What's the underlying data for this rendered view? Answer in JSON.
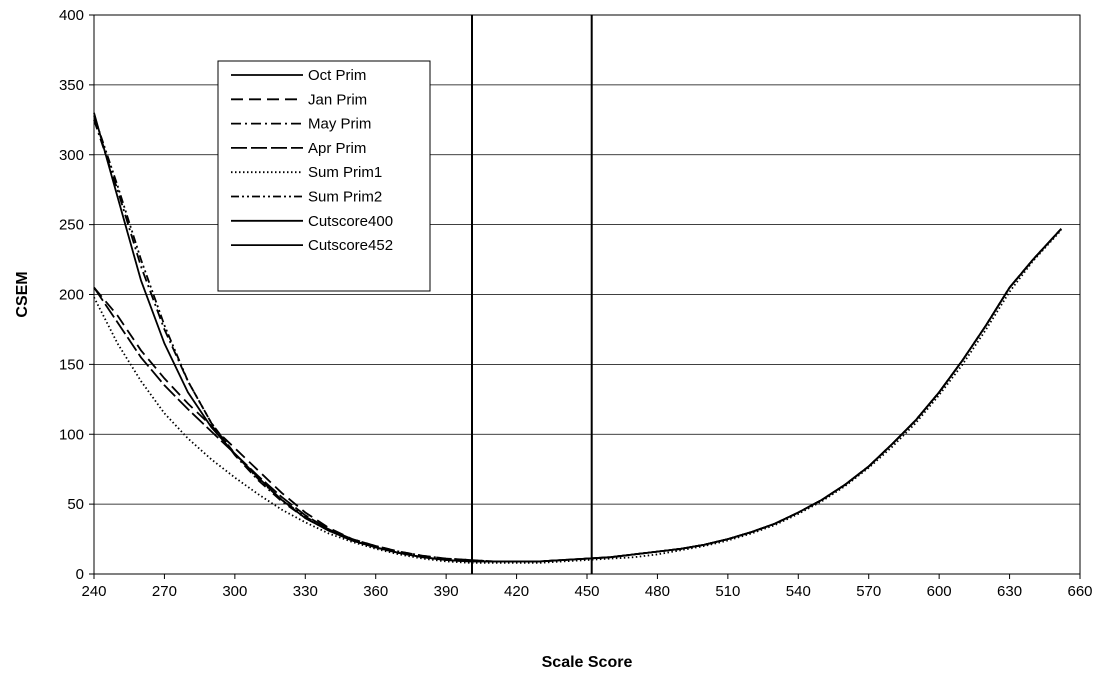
{
  "chart_data": {
    "type": "line",
    "title": "",
    "xlabel": "Scale Score",
    "ylabel": "CSEM",
    "xlim": [
      240,
      660
    ],
    "ylim": [
      0,
      400
    ],
    "xticks": [
      240,
      270,
      300,
      330,
      360,
      390,
      420,
      450,
      480,
      510,
      540,
      570,
      600,
      630,
      660
    ],
    "yticks": [
      0,
      50,
      100,
      150,
      200,
      250,
      300,
      350,
      400
    ],
    "grid": "horizontal",
    "legend_position": "top-left inside plot",
    "series": [
      {
        "name": "Oct Prim",
        "dash": "solid",
        "points": [
          [
            240,
            330
          ],
          [
            250,
            270
          ],
          [
            260,
            210
          ],
          [
            270,
            165
          ],
          [
            280,
            130
          ],
          [
            290,
            105
          ],
          [
            300,
            86
          ],
          [
            310,
            69
          ],
          [
            320,
            53
          ],
          [
            330,
            40
          ],
          [
            340,
            31
          ],
          [
            350,
            24
          ],
          [
            360,
            19
          ],
          [
            370,
            15
          ],
          [
            380,
            12
          ],
          [
            390,
            10
          ],
          [
            400,
            9
          ],
          [
            410,
            9
          ],
          [
            420,
            9
          ],
          [
            430,
            9
          ],
          [
            440,
            10
          ],
          [
            450,
            11
          ],
          [
            460,
            12
          ],
          [
            470,
            14
          ],
          [
            480,
            16
          ],
          [
            490,
            18
          ],
          [
            500,
            21
          ],
          [
            510,
            25
          ],
          [
            520,
            30
          ],
          [
            530,
            36
          ],
          [
            540,
            44
          ],
          [
            550,
            53
          ],
          [
            560,
            64
          ],
          [
            570,
            77
          ],
          [
            580,
            93
          ],
          [
            590,
            110
          ],
          [
            600,
            130
          ],
          [
            610,
            153
          ],
          [
            620,
            178
          ],
          [
            630,
            205
          ],
          [
            640,
            225
          ],
          [
            652,
            247
          ]
        ]
      },
      {
        "name": "Jan Prim",
        "dash": "long",
        "points": [
          [
            240,
            205
          ],
          [
            250,
            185
          ],
          [
            260,
            160
          ],
          [
            270,
            140
          ],
          [
            280,
            122
          ],
          [
            290,
            106
          ],
          [
            300,
            90
          ],
          [
            310,
            74
          ],
          [
            320,
            58
          ],
          [
            330,
            44
          ],
          [
            340,
            33
          ],
          [
            350,
            25
          ],
          [
            360,
            20
          ],
          [
            370,
            16
          ],
          [
            380,
            13
          ],
          [
            390,
            11
          ],
          [
            400,
            10
          ],
          [
            410,
            9
          ],
          [
            420,
            9
          ],
          [
            430,
            9
          ],
          [
            440,
            10
          ],
          [
            450,
            11
          ],
          [
            460,
            12
          ],
          [
            470,
            14
          ],
          [
            480,
            16
          ],
          [
            490,
            18
          ],
          [
            500,
            21
          ],
          [
            510,
            25
          ],
          [
            520,
            30
          ],
          [
            530,
            36
          ],
          [
            540,
            44
          ],
          [
            550,
            53
          ],
          [
            560,
            64
          ],
          [
            570,
            77
          ],
          [
            580,
            93
          ],
          [
            590,
            110
          ],
          [
            600,
            130
          ],
          [
            610,
            153
          ],
          [
            620,
            178
          ],
          [
            630,
            205
          ],
          [
            640,
            225
          ],
          [
            652,
            247
          ]
        ]
      },
      {
        "name": "May Prim",
        "dash": "dashdot",
        "points": [
          [
            240,
            325
          ],
          [
            250,
            275
          ],
          [
            260,
            220
          ],
          [
            270,
            175
          ],
          [
            280,
            138
          ],
          [
            290,
            108
          ],
          [
            300,
            85
          ],
          [
            310,
            67
          ],
          [
            320,
            52
          ],
          [
            330,
            40
          ],
          [
            340,
            31
          ],
          [
            350,
            24
          ],
          [
            360,
            19
          ],
          [
            370,
            15
          ],
          [
            380,
            12
          ],
          [
            390,
            10
          ],
          [
            400,
            9
          ],
          [
            410,
            9
          ],
          [
            420,
            9
          ],
          [
            430,
            9
          ],
          [
            440,
            10
          ],
          [
            450,
            11
          ],
          [
            460,
            12
          ],
          [
            470,
            14
          ],
          [
            480,
            16
          ],
          [
            490,
            18
          ],
          [
            500,
            21
          ],
          [
            510,
            25
          ],
          [
            520,
            30
          ],
          [
            530,
            36
          ],
          [
            540,
            44
          ],
          [
            550,
            53
          ],
          [
            560,
            64
          ],
          [
            570,
            77
          ],
          [
            580,
            93
          ],
          [
            590,
            110
          ],
          [
            600,
            130
          ],
          [
            610,
            153
          ],
          [
            620,
            178
          ],
          [
            630,
            205
          ],
          [
            640,
            225
          ],
          [
            652,
            247
          ]
        ]
      },
      {
        "name": "Apr Prim",
        "dash": "longdash",
        "points": [
          [
            240,
            205
          ],
          [
            250,
            180
          ],
          [
            260,
            155
          ],
          [
            270,
            135
          ],
          [
            280,
            118
          ],
          [
            290,
            102
          ],
          [
            300,
            86
          ],
          [
            310,
            70
          ],
          [
            320,
            55
          ],
          [
            330,
            42
          ],
          [
            340,
            32
          ],
          [
            350,
            24
          ],
          [
            360,
            19
          ],
          [
            370,
            15
          ],
          [
            380,
            12
          ],
          [
            390,
            10
          ],
          [
            400,
            9
          ],
          [
            410,
            9
          ],
          [
            420,
            9
          ],
          [
            430,
            9
          ],
          [
            440,
            10
          ],
          [
            450,
            11
          ],
          [
            460,
            12
          ],
          [
            470,
            14
          ],
          [
            480,
            16
          ],
          [
            490,
            18
          ],
          [
            500,
            21
          ],
          [
            510,
            25
          ],
          [
            520,
            30
          ],
          [
            530,
            36
          ],
          [
            540,
            44
          ],
          [
            550,
            53
          ],
          [
            560,
            64
          ],
          [
            570,
            77
          ],
          [
            580,
            93
          ],
          [
            590,
            110
          ],
          [
            600,
            130
          ],
          [
            610,
            153
          ],
          [
            620,
            178
          ],
          [
            630,
            205
          ],
          [
            640,
            225
          ],
          [
            652,
            247
          ]
        ]
      },
      {
        "name": "Sum Prim1",
        "dash": "dotted",
        "points": [
          [
            240,
            198
          ],
          [
            250,
            165
          ],
          [
            260,
            138
          ],
          [
            270,
            115
          ],
          [
            280,
            97
          ],
          [
            290,
            82
          ],
          [
            300,
            69
          ],
          [
            310,
            57
          ],
          [
            320,
            46
          ],
          [
            330,
            37
          ],
          [
            340,
            29
          ],
          [
            350,
            23
          ],
          [
            360,
            18
          ],
          [
            370,
            14
          ],
          [
            380,
            11
          ],
          [
            390,
            9
          ],
          [
            400,
            8
          ],
          [
            410,
            8
          ],
          [
            420,
            8
          ],
          [
            430,
            8
          ],
          [
            440,
            9
          ],
          [
            450,
            10
          ],
          [
            460,
            11
          ],
          [
            470,
            12
          ],
          [
            480,
            14
          ],
          [
            490,
            17
          ],
          [
            500,
            20
          ],
          [
            510,
            24
          ],
          [
            520,
            29
          ],
          [
            530,
            35
          ],
          [
            540,
            43
          ],
          [
            550,
            52
          ],
          [
            560,
            63
          ],
          [
            570,
            76
          ],
          [
            580,
            91
          ],
          [
            590,
            108
          ],
          [
            600,
            128
          ],
          [
            610,
            150
          ],
          [
            620,
            175
          ],
          [
            630,
            202
          ],
          [
            640,
            224
          ],
          [
            652,
            246
          ]
        ]
      },
      {
        "name": "Sum Prim2",
        "dash": "dashdotdot",
        "points": [
          [
            240,
            328
          ],
          [
            250,
            278
          ],
          [
            260,
            225
          ],
          [
            270,
            178
          ],
          [
            280,
            138
          ],
          [
            290,
            108
          ],
          [
            300,
            86
          ],
          [
            310,
            68
          ],
          [
            320,
            53
          ],
          [
            330,
            41
          ],
          [
            340,
            32
          ],
          [
            350,
            25
          ],
          [
            360,
            20
          ],
          [
            370,
            16
          ],
          [
            380,
            13
          ],
          [
            390,
            11
          ],
          [
            400,
            10
          ],
          [
            410,
            9
          ],
          [
            420,
            9
          ],
          [
            430,
            9
          ],
          [
            440,
            10
          ],
          [
            450,
            11
          ],
          [
            460,
            12
          ],
          [
            470,
            14
          ],
          [
            480,
            16
          ],
          [
            490,
            18
          ],
          [
            500,
            21
          ],
          [
            510,
            25
          ],
          [
            520,
            30
          ],
          [
            530,
            36
          ],
          [
            540,
            44
          ],
          [
            550,
            53
          ],
          [
            560,
            64
          ],
          [
            570,
            77
          ],
          [
            580,
            93
          ],
          [
            590,
            110
          ],
          [
            600,
            130
          ],
          [
            610,
            153
          ],
          [
            620,
            178
          ],
          [
            630,
            205
          ],
          [
            640,
            225
          ],
          [
            652,
            247
          ]
        ]
      },
      {
        "name": "Cutscore400",
        "dash": "solid",
        "points": [
          [
            401,
            0
          ],
          [
            401,
            400
          ]
        ]
      },
      {
        "name": "Cutscore452",
        "dash": "solid",
        "points": [
          [
            452,
            0
          ],
          [
            452,
            400
          ]
        ]
      }
    ]
  },
  "colors": {
    "line": "#000000",
    "grid": "#000000",
    "background": "#ffffff"
  }
}
